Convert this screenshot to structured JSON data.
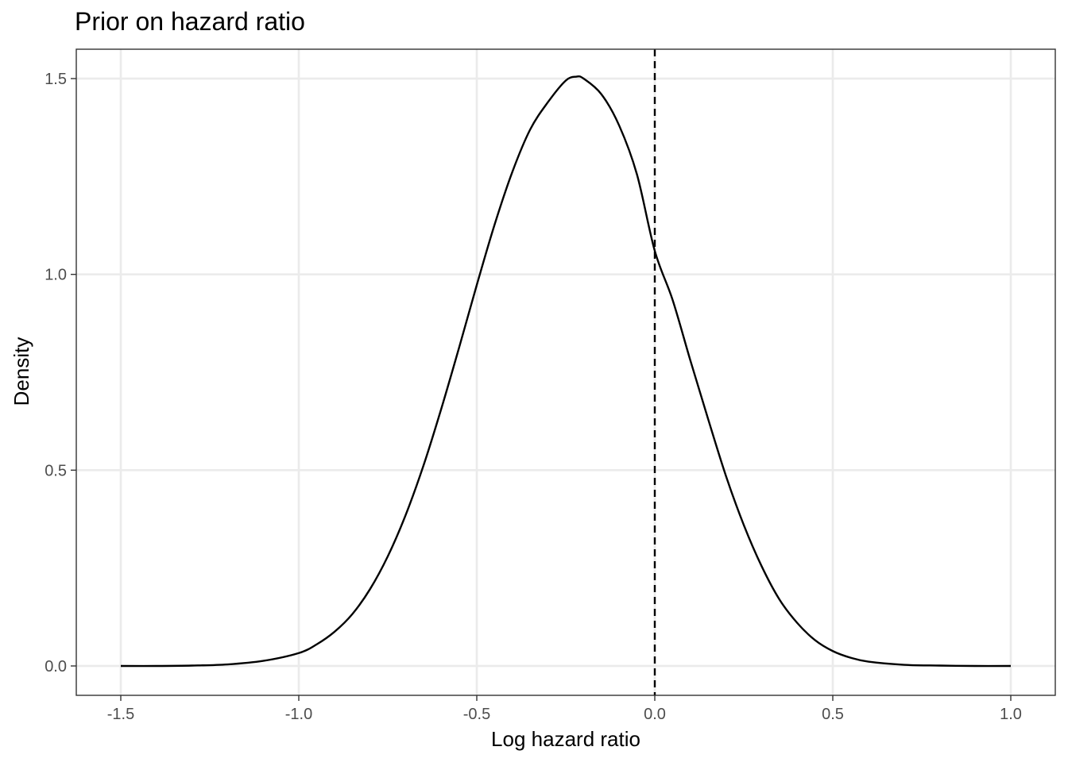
{
  "chart_data": {
    "type": "line",
    "title": "Prior on hazard ratio",
    "xlabel": "Log hazard ratio",
    "ylabel": "Density",
    "xlim": [
      -1.625,
      1.125
    ],
    "ylim": [
      -0.075,
      1.575
    ],
    "x_ticks": [
      -1.5,
      -1.0,
      -0.5,
      0.0,
      0.5,
      1.0
    ],
    "x_tick_labels": [
      "-1.5",
      "-1.0",
      "-0.5",
      "0.0",
      "0.5",
      "1.0"
    ],
    "y_ticks": [
      0.0,
      0.5,
      1.0,
      1.5
    ],
    "y_tick_labels": [
      "0.0",
      "0.5",
      "1.0",
      "1.5"
    ],
    "grid": true,
    "series": [
      {
        "style": "solid",
        "color": "#000000",
        "x": [
          -1.5,
          -1.4,
          -1.3,
          -1.2,
          -1.1,
          -1.0,
          -0.95,
          -0.9,
          -0.85,
          -0.8,
          -0.75,
          -0.7,
          -0.65,
          -0.6,
          -0.55,
          -0.5,
          -0.45,
          -0.4,
          -0.35,
          -0.3,
          -0.25,
          -0.22,
          -0.2,
          -0.15,
          -0.1,
          -0.05,
          0.0,
          0.05,
          0.1,
          0.15,
          0.2,
          0.25,
          0.3,
          0.35,
          0.4,
          0.45,
          0.5,
          0.55,
          0.6,
          0.7,
          0.8,
          0.9,
          1.0
        ],
        "y": [
          0.0,
          0.0,
          0.001,
          0.004,
          0.013,
          0.033,
          0.055,
          0.087,
          0.132,
          0.196,
          0.28,
          0.385,
          0.511,
          0.656,
          0.812,
          0.973,
          1.127,
          1.262,
          1.37,
          1.44,
          1.495,
          1.505,
          1.5,
          1.46,
          1.38,
          1.255,
          1.06,
          0.935,
          0.78,
          0.63,
          0.485,
          0.36,
          0.255,
          0.17,
          0.11,
          0.066,
          0.038,
          0.021,
          0.011,
          0.003,
          0.001,
          0.0,
          0.0
        ]
      }
    ],
    "reference_lines": [
      {
        "orientation": "vertical",
        "x": 0.0,
        "style": "dashed",
        "color": "#000000"
      }
    ]
  }
}
